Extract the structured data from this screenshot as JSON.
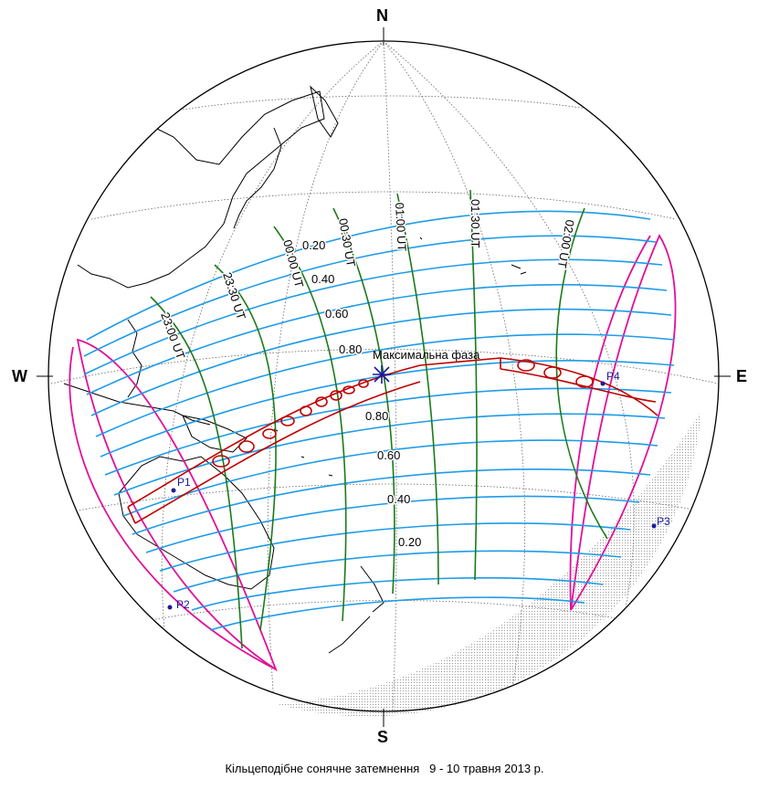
{
  "compass": {
    "n": "N",
    "s": "S",
    "w": "W",
    "e": "E"
  },
  "caption": "Кільцеподібне сонячне затемнення   9 - 10 травня 2013 р.",
  "max_label": "Максимальна фаза",
  "contacts": [
    "P1",
    "P2",
    "P3",
    "P4"
  ],
  "magnitudes": [
    "0.20",
    "0.40",
    "0.60",
    "0.80",
    "0.80",
    "0.60",
    "0.40",
    "0.20"
  ],
  "times": [
    "23:00 UT",
    "23:30 UT",
    "00:00 UT",
    "00:30 UT",
    "01:00 UT",
    "01:30 UT",
    "02:00 UT"
  ],
  "colors": {
    "magnitude_lines": "#1e9be8",
    "time_lines": "#1a7a1a",
    "penumbra_limits": "#e0109a",
    "annular_path": "#c00000",
    "contact_points": "#1a1a9a",
    "graticule": "#555555",
    "coastlines": "#000000"
  }
}
